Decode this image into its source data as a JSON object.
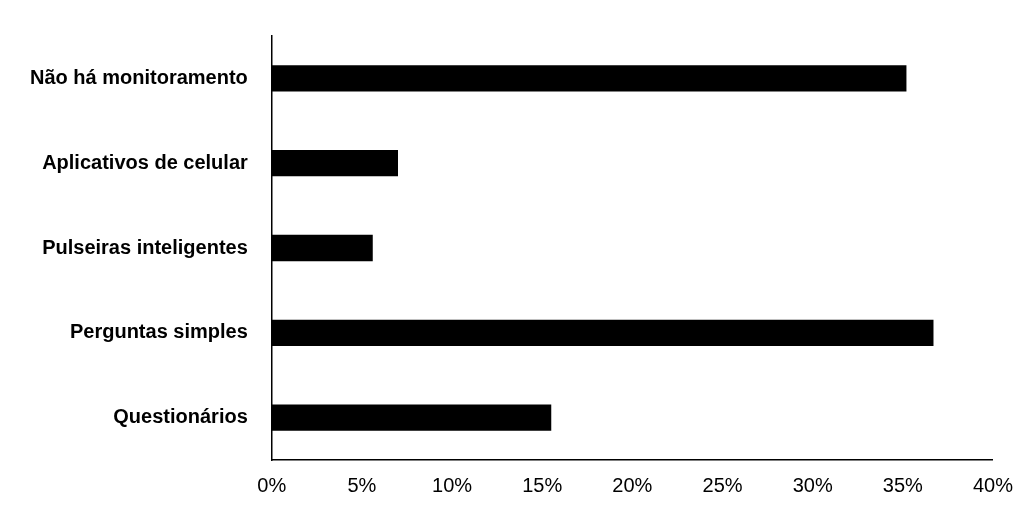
{
  "chart_data": {
    "type": "bar",
    "orientation": "horizontal",
    "categories": [
      "Não há monitoramento",
      "Aplicativos de celular",
      "Pulseiras inteligentes",
      "Perguntas simples",
      "Questionários"
    ],
    "values": [
      35.2,
      7.0,
      5.6,
      36.7,
      15.5
    ],
    "color": "#000000",
    "xlim": [
      0,
      40
    ],
    "xticks": [
      {
        "value": 0,
        "label": "0%"
      },
      {
        "value": 5,
        "label": "5%"
      },
      {
        "value": 10,
        "label": "10%"
      },
      {
        "value": 15,
        "label": "15%"
      },
      {
        "value": 20,
        "label": "20%"
      },
      {
        "value": 25,
        "label": "25%"
      },
      {
        "value": 30,
        "label": "30%"
      },
      {
        "value": 35,
        "label": "35%"
      },
      {
        "value": 40,
        "label": "40%"
      }
    ],
    "grid": false,
    "legend": false
  }
}
